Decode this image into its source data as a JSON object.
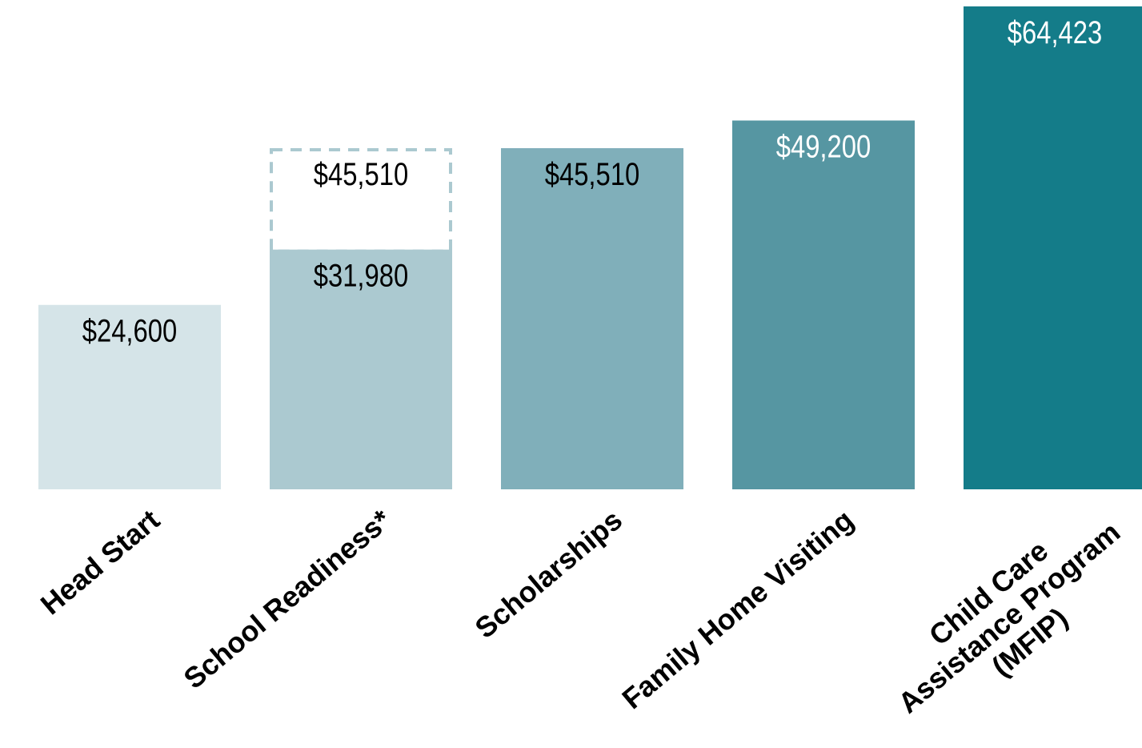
{
  "chart_data": {
    "type": "bar",
    "categories": [
      "Head Start",
      "School Readiness*",
      "Scholarships",
      "Family Home Visiting",
      "Child Care\nAssistance Program\n(MFIP)"
    ],
    "values": [
      24600,
      31980,
      45510,
      49200,
      64423
    ],
    "value_labels": [
      "$24,600",
      "$31,980",
      "$45,510",
      "$49,200",
      "$64,423"
    ],
    "colors": [
      "#d5e4e8",
      "#abc9d0",
      "#80afba",
      "#5696a2",
      "#147c89"
    ],
    "dashed_values": [
      null,
      45510,
      null,
      null,
      null
    ],
    "dashed_value_labels": [
      null,
      "$45,510",
      null,
      null,
      null
    ],
    "dashed_color": "#abc9d0"
  }
}
